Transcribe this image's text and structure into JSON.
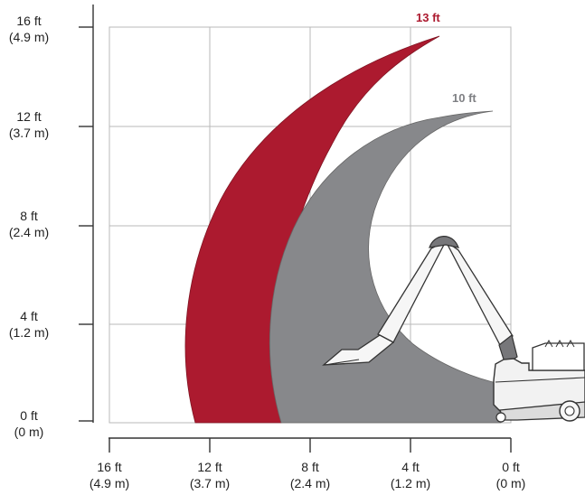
{
  "colors": {
    "outer_reach": "#ac1a2f",
    "inner_reach": "#87888b",
    "grid": "#b9b9b9",
    "axis": "#333333",
    "label_13": "#ac1a2f",
    "label_10": "#7f8084",
    "machine_fill": "#f2f2f2",
    "machine_line": "#333333"
  },
  "labels": {
    "outer_reach": "13 ft",
    "inner_reach": "10 ft"
  },
  "y_axis": {
    "ticks": [
      {
        "value_ft": 16,
        "line1": "16 ft",
        "line2": "(4.9 m)"
      },
      {
        "value_ft": 12,
        "line1": "12 ft",
        "line2": "(3.7 m)"
      },
      {
        "value_ft": 8,
        "line1": "8 ft",
        "line2": "(2.4 m)"
      },
      {
        "value_ft": 4,
        "line1": "4 ft",
        "line2": "(1.2 m)"
      },
      {
        "value_ft": 0,
        "line1": "0 ft",
        "line2": "(0 m)"
      }
    ]
  },
  "x_axis": {
    "ticks": [
      {
        "value_ft": 16,
        "line1": "16 ft",
        "line2": "(4.9 m)"
      },
      {
        "value_ft": 12,
        "line1": "12 ft",
        "line2": "(3.7 m)"
      },
      {
        "value_ft": 8,
        "line1": "8 ft",
        "line2": "(2.4 m)"
      },
      {
        "value_ft": 4,
        "line1": "4 ft",
        "line2": "(1.2 m)"
      },
      {
        "value_ft": 0,
        "line1": "0 ft",
        "line2": "(0 m)"
      }
    ]
  }
}
